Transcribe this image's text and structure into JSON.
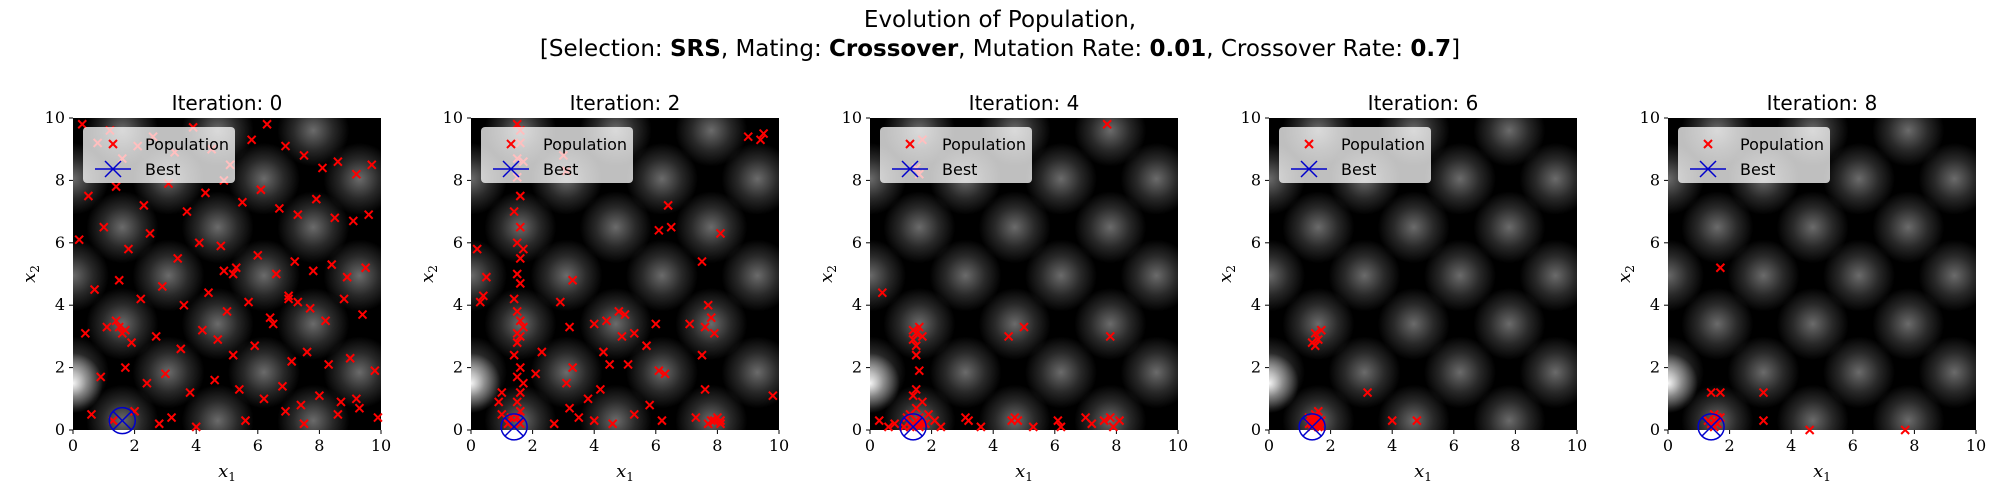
{
  "figure": {
    "title_line1": "Evolution of Population,",
    "title_line2": {
      "selection_label": "Selection: ",
      "selection_value": "SRS",
      "mating_label": "Mating: ",
      "mating_value": "Crossover",
      "mutation_label": "Mutation Rate: ",
      "mutation_value": "0.01",
      "crossover_label": "Crossover Rate: ",
      "crossover_value": "0.7"
    }
  },
  "colors": {
    "population": "#ff0000",
    "best": "#0000cc",
    "background": "#000000"
  },
  "chart_data": [
    {
      "type": "scatter",
      "title": "Iteration: 0",
      "xlabel": "x1",
      "ylabel": "x2",
      "xlim": [
        0,
        10
      ],
      "ylim": [
        0,
        10
      ],
      "xticks": [
        "0",
        "2",
        "4",
        "6",
        "8",
        "10"
      ],
      "yticks": [
        "0",
        "2",
        "4",
        "6",
        "8",
        "10"
      ],
      "legend": {
        "placement": "top-left",
        "entries": [
          "Population",
          "Best"
        ]
      },
      "best": {
        "x": 1.6,
        "y": 0.3
      },
      "series": [
        {
          "name": "Population",
          "x": [
            0.3,
            0.8,
            1.2,
            1.6,
            2.1,
            2.6,
            3.3,
            3.9,
            4.5,
            5.1,
            5.8,
            6.3,
            6.9,
            7.5,
            8.1,
            8.6,
            9.2,
            9.7,
            0.5,
            1.4,
            2.3,
            3.1,
            3.7,
            4.3,
            4.9,
            5.5,
            6.1,
            6.7,
            7.3,
            7.9,
            8.5,
            9.1,
            9.6,
            0.2,
            1.0,
            1.8,
            2.5,
            3.4,
            4.1,
            4.8,
            5.3,
            6.0,
            6.6,
            7.2,
            7.8,
            8.4,
            8.9,
            9.5,
            0.7,
            1.5,
            2.2,
            2.9,
            3.6,
            4.4,
            5.0,
            5.7,
            6.4,
            7.0,
            7.7,
            8.2,
            8.8,
            9.4,
            0.4,
            1.1,
            1.9,
            2.7,
            3.5,
            4.2,
            4.7,
            5.2,
            5.9,
            6.5,
            7.1,
            7.6,
            8.3,
            9.0,
            9.8,
            0.9,
            1.7,
            2.4,
            3.0,
            3.8,
            4.6,
            5.4,
            6.2,
            6.8,
            7.4,
            8.0,
            8.7,
            9.3,
            0.6,
            1.3,
            2.0,
            2.8,
            3.2,
            4.0,
            5.6,
            6.9,
            7.5,
            8.6,
            9.9,
            1.5,
            1.6,
            1.4,
            1.7,
            4.9,
            5.2,
            7.0,
            7.3,
            9.2
          ],
          "y": [
            9.8,
            9.2,
            9.6,
            8.7,
            9.1,
            9.4,
            8.9,
            9.7,
            9.0,
            8.5,
            9.3,
            9.8,
            9.1,
            8.8,
            8.4,
            8.6,
            8.2,
            8.5,
            7.5,
            7.8,
            7.2,
            7.9,
            7.0,
            7.6,
            8.0,
            7.3,
            7.7,
            7.1,
            6.9,
            7.4,
            6.8,
            6.7,
            6.9,
            6.1,
            6.5,
            5.8,
            6.3,
            5.5,
            6.0,
            5.9,
            5.2,
            5.6,
            5.0,
            5.4,
            5.1,
            5.3,
            4.9,
            5.2,
            4.5,
            4.8,
            4.2,
            4.6,
            4.0,
            4.4,
            3.8,
            4.1,
            3.6,
            4.3,
            3.9,
            3.5,
            4.2,
            3.7,
            3.1,
            3.3,
            2.8,
            3.0,
            2.6,
            3.2,
            2.9,
            2.4,
            2.7,
            3.4,
            2.2,
            2.5,
            2.1,
            2.3,
            1.9,
            1.7,
            2.0,
            1.5,
            1.8,
            1.2,
            1.6,
            1.3,
            1.0,
            1.4,
            0.8,
            1.1,
            0.9,
            0.7,
            0.5,
            0.3,
            0.6,
            0.2,
            0.4,
            0.1,
            0.3,
            0.6,
            0.2,
            0.5,
            0.4,
            3.3,
            3.1,
            3.5,
            3.2,
            5.1,
            5.0,
            4.2,
            4.1,
            1.0
          ]
        }
      ]
    },
    {
      "type": "scatter",
      "title": "Iteration: 2",
      "xlabel": "x1",
      "ylabel": "x2",
      "xlim": [
        0,
        10
      ],
      "ylim": [
        0,
        10
      ],
      "xticks": [
        "0",
        "2",
        "4",
        "6",
        "8",
        "10"
      ],
      "yticks": [
        "0",
        "2",
        "4",
        "6",
        "8",
        "10"
      ],
      "legend": {
        "placement": "top-left",
        "entries": [
          "Population",
          "Best"
        ]
      },
      "best": {
        "x": 1.4,
        "y": 0.1
      },
      "series": [
        {
          "name": "Population",
          "x": [
            1.5,
            1.6,
            1.6,
            1.5,
            1.7,
            1.5,
            1.6,
            1.4,
            1.6,
            1.5,
            1.7,
            1.6,
            1.5,
            1.6,
            1.4,
            1.5,
            1.6,
            1.7,
            1.5,
            1.6,
            1.5,
            1.4,
            1.6,
            1.5,
            1.7,
            1.6,
            1.5,
            1.6,
            1.5,
            1.6,
            0.4,
            0.5,
            0.3,
            0.2,
            1.0,
            3.1,
            3.1,
            3.0,
            3.3,
            2.9,
            3.2,
            4.0,
            4.3,
            4.5,
            4.4,
            4.9,
            5.0,
            5.3,
            6.0,
            6.1,
            6.3,
            6.5,
            7.1,
            7.6,
            7.8,
            7.9,
            7.6,
            7.8,
            7.7,
            8.0,
            8.1,
            7.9,
            7.5,
            9.5,
            9.4,
            9.8,
            2.7,
            3.2,
            3.5,
            3.8,
            4.0,
            4.6,
            5.3,
            5.8,
            6.2,
            7.3,
            8.1,
            9.0,
            1.0,
            0.9,
            2.1,
            2.3,
            3.1,
            3.3,
            4.2,
            4.8,
            5.1,
            5.7,
            6.1,
            6.4,
            7.5,
            7.7,
            8.1,
            1.2,
            1.3
          ],
          "y": [
            9.8,
            9.6,
            9.2,
            8.7,
            8.6,
            8.1,
            7.5,
            7.0,
            6.5,
            6.0,
            5.8,
            5.5,
            5.0,
            4.7,
            4.2,
            3.8,
            3.5,
            3.3,
            3.1,
            3.0,
            2.8,
            2.4,
            2.0,
            1.7,
            1.5,
            1.2,
            0.9,
            0.6,
            0.4,
            0.2,
            4.3,
            4.9,
            4.1,
            5.8,
            0.5,
            8.3,
            8.3,
            8.8,
            4.8,
            4.1,
            3.3,
            3.4,
            2.5,
            2.1,
            3.5,
            3.0,
            3.7,
            3.1,
            3.4,
            1.9,
            1.8,
            6.5,
            3.4,
            3.3,
            3.6,
            3.1,
            1.3,
            0.3,
            0.2,
            0.4,
            0.2,
            0.3,
            5.4,
            9.5,
            9.3,
            1.1,
            0.2,
            0.7,
            0.4,
            1.0,
            0.3,
            0.2,
            0.5,
            0.8,
            0.3,
            0.4,
            0.3,
            9.4,
            1.2,
            0.9,
            1.8,
            2.5,
            1.5,
            2.0,
            1.3,
            3.8,
            2.1,
            2.7,
            6.4,
            7.2,
            2.4,
            4.0,
            6.3,
            0.2,
            0.4
          ]
        }
      ]
    },
    {
      "type": "scatter",
      "title": "Iteration: 4",
      "xlabel": "x1",
      "ylabel": "x2",
      "xlim": [
        0,
        10
      ],
      "ylim": [
        0,
        10
      ],
      "xticks": [
        "0",
        "2",
        "4",
        "6",
        "8",
        "10"
      ],
      "yticks": [
        "0",
        "2",
        "4",
        "6",
        "8",
        "10"
      ],
      "legend": {
        "placement": "top-left",
        "entries": [
          "Population",
          "Best"
        ]
      },
      "best": {
        "x": 1.4,
        "y": 0.1
      },
      "series": [
        {
          "name": "Population",
          "x": [
            1.7,
            1.5,
            1.6,
            1.4,
            1.5,
            1.6,
            1.7,
            1.4,
            1.5,
            1.6,
            1.5,
            1.4,
            1.7,
            1.5,
            1.3,
            1.6,
            1.5,
            1.7,
            1.4,
            1.3,
            1.6,
            1.5,
            1.2,
            1.8,
            1.1,
            1.9,
            0.3,
            0.4,
            0.6,
            0.8,
            2.1,
            2.3,
            3.1,
            3.2,
            3.6,
            4.6,
            4.7,
            4.8,
            5.3,
            6.1,
            6.2,
            7.0,
            7.2,
            7.6,
            7.8,
            7.9,
            8.1,
            4.5,
            5.0,
            7.8,
            7.7,
            1.5
          ],
          "y": [
            9.3,
            8.4,
            8.2,
            3.2,
            3.1,
            3.3,
            3.0,
            2.9,
            2.4,
            1.9,
            1.3,
            1.1,
            0.9,
            0.7,
            0.5,
            0.4,
            0.3,
            0.2,
            0.2,
            0.1,
            0.1,
            0.3,
            0.4,
            0.2,
            0.1,
            0.5,
            0.3,
            4.4,
            0.1,
            0.2,
            0.3,
            0.1,
            0.4,
            0.3,
            0.1,
            0.3,
            0.4,
            0.3,
            0.1,
            0.3,
            0.1,
            0.4,
            0.2,
            0.3,
            0.4,
            0.1,
            0.3,
            3.0,
            3.3,
            3.0,
            9.8,
            2.7
          ]
        }
      ]
    },
    {
      "type": "scatter",
      "title": "Iteration: 6",
      "xlabel": "x1",
      "ylabel": "x2",
      "xlim": [
        0,
        10
      ],
      "ylim": [
        0,
        10
      ],
      "xticks": [
        "0",
        "2",
        "4",
        "6",
        "8",
        "10"
      ],
      "yticks": [
        "0",
        "2",
        "4",
        "6",
        "8",
        "10"
      ],
      "legend": {
        "placement": "top-left",
        "entries": [
          "Population",
          "Best"
        ]
      },
      "best": {
        "x": 1.4,
        "y": 0.1
      },
      "series": [
        {
          "name": "Population",
          "x": [
            1.5,
            1.6,
            1.4,
            1.7,
            1.5,
            1.5,
            1.6,
            1.4,
            1.3,
            1.7,
            1.5,
            1.6,
            1.4,
            1.5,
            1.6,
            1.3,
            1.7,
            3.2,
            4.0,
            4.8,
            1.5
          ],
          "y": [
            3.1,
            2.9,
            2.8,
            3.2,
            2.7,
            0.3,
            0.2,
            0.1,
            0.2,
            0.3,
            0.4,
            0.1,
            0.2,
            0.5,
            0.6,
            0.4,
            0.1,
            1.2,
            0.3,
            0.3,
            0.2
          ]
        }
      ]
    },
    {
      "type": "scatter",
      "title": "Iteration: 8",
      "xlabel": "x1",
      "ylabel": "x2",
      "xlim": [
        0,
        10
      ],
      "ylim": [
        0,
        10
      ],
      "xticks": [
        "0",
        "2",
        "4",
        "6",
        "8",
        "10"
      ],
      "yticks": [
        "0",
        "2",
        "4",
        "6",
        "8",
        "10"
      ],
      "legend": {
        "placement": "top-left",
        "entries": [
          "Population",
          "Best"
        ]
      },
      "best": {
        "x": 1.4,
        "y": 0.1
      },
      "series": [
        {
          "name": "Population",
          "x": [
            1.7,
            1.4,
            1.7,
            3.1,
            3.1,
            1.5,
            1.6,
            1.4,
            1.5,
            1.6,
            1.3,
            1.5,
            1.7,
            4.6,
            7.7
          ],
          "y": [
            5.2,
            1.2,
            1.2,
            1.2,
            0.3,
            0.3,
            0.2,
            0.2,
            0.1,
            0.4,
            0.3,
            0.5,
            0.4,
            0.0,
            0.0
          ]
        }
      ]
    }
  ]
}
